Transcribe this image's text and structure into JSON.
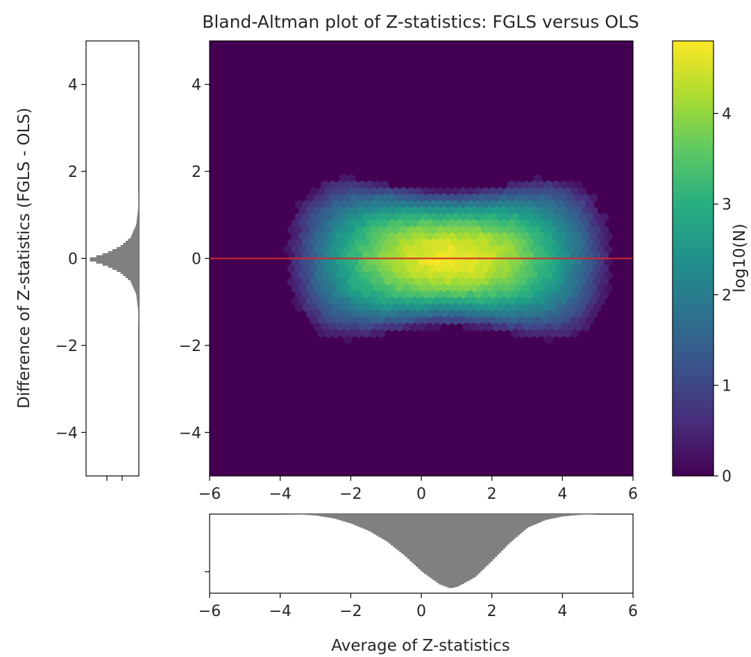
{
  "chart_data": {
    "type": "heatmap",
    "title": "Bland-Altman plot of Z-statistics: FGLS versus OLS",
    "xlabel": "Average of Z-statistics",
    "ylabel": "Difference of Z-statistics (FGLS - OLS)",
    "colorbar_label": "log10(N)",
    "xlim": [
      -6,
      6
    ],
    "ylim": [
      -5,
      5
    ],
    "clim": [
      0,
      4.8
    ],
    "x_ticks": [
      "−6",
      "−4",
      "−2",
      "0",
      "2",
      "4",
      "6"
    ],
    "y_ticks": [
      "4",
      "2",
      "0",
      "−2",
      "−4"
    ],
    "colorbar_ticks": [
      "0",
      "1",
      "2",
      "3",
      "4"
    ],
    "colormap": "viridis",
    "reference_line": {
      "y": 0,
      "color": "#d62728"
    },
    "hist_color": "#808080",
    "hex_bins": {
      "center_x": 0.8,
      "center_y": 0.0,
      "peak_log10_count": 4.7,
      "sd_difference_at_center": 0.55,
      "sd_average": 1.6
    },
    "marginal_histograms": {
      "average": {
        "x": [
          -6,
          -5,
          -4,
          -3.5,
          -3,
          -2.5,
          -2,
          -1.5,
          -1,
          -0.5,
          0,
          0.5,
          0.8,
          1,
          1.5,
          2,
          2.5,
          3,
          3.5,
          4,
          4.5,
          5,
          6
        ],
        "density": [
          0,
          0,
          0,
          0.003,
          0.02,
          0.06,
          0.13,
          0.23,
          0.37,
          0.56,
          0.78,
          0.95,
          1.0,
          0.98,
          0.85,
          0.62,
          0.38,
          0.18,
          0.08,
          0.03,
          0.01,
          0,
          0
        ]
      },
      "difference": {
        "y": [
          -5,
          -3,
          -2,
          -1.6,
          -1.2,
          -0.8,
          -0.5,
          -0.3,
          -0.15,
          0,
          0.15,
          0.3,
          0.5,
          0.8,
          1.2,
          1.6,
          2,
          3,
          5
        ],
        "density": [
          0,
          0,
          0,
          0,
          0.01,
          0.05,
          0.16,
          0.36,
          0.62,
          1.0,
          0.62,
          0.36,
          0.16,
          0.05,
          0.01,
          0,
          0,
          0,
          0
        ]
      }
    }
  }
}
